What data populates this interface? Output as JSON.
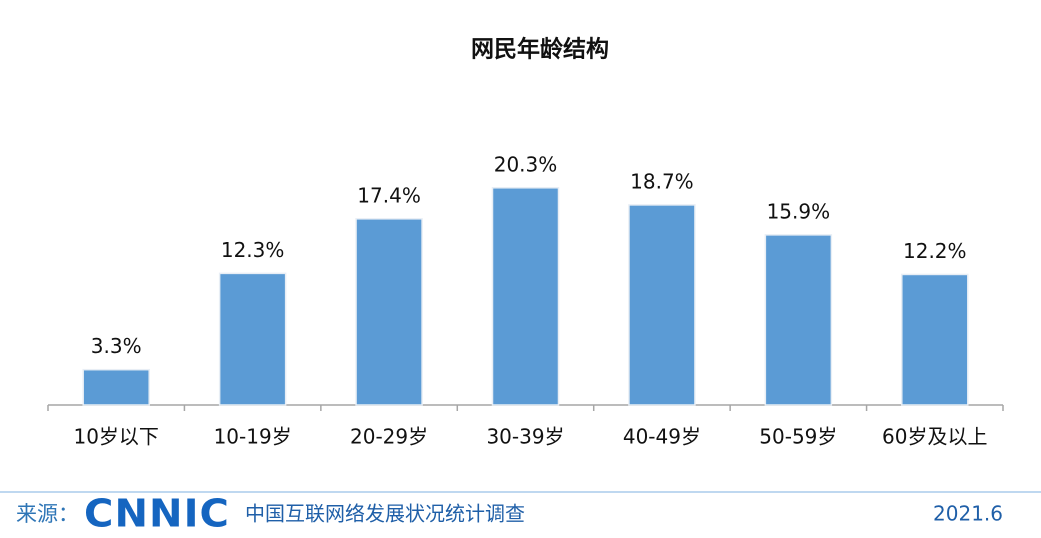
{
  "chart_data": {
    "type": "bar",
    "title": "网民年龄结构",
    "categories": [
      "10岁以下",
      "10-19岁",
      "20-29岁",
      "30-39岁",
      "40-49岁",
      "50-59岁",
      "60岁及以上"
    ],
    "values": [
      3.3,
      12.3,
      17.4,
      20.3,
      18.7,
      15.9,
      12.2
    ],
    "value_labels": [
      "3.3%",
      "12.3%",
      "17.4%",
      "20.3%",
      "18.7%",
      "15.9%",
      "12.2%"
    ],
    "color": "#5b9bd5"
  },
  "footer": {
    "source_label": "来源：",
    "logo": "CNNIC",
    "source_text": "中国互联网络发展状况统计调查",
    "date": "2021.6"
  }
}
